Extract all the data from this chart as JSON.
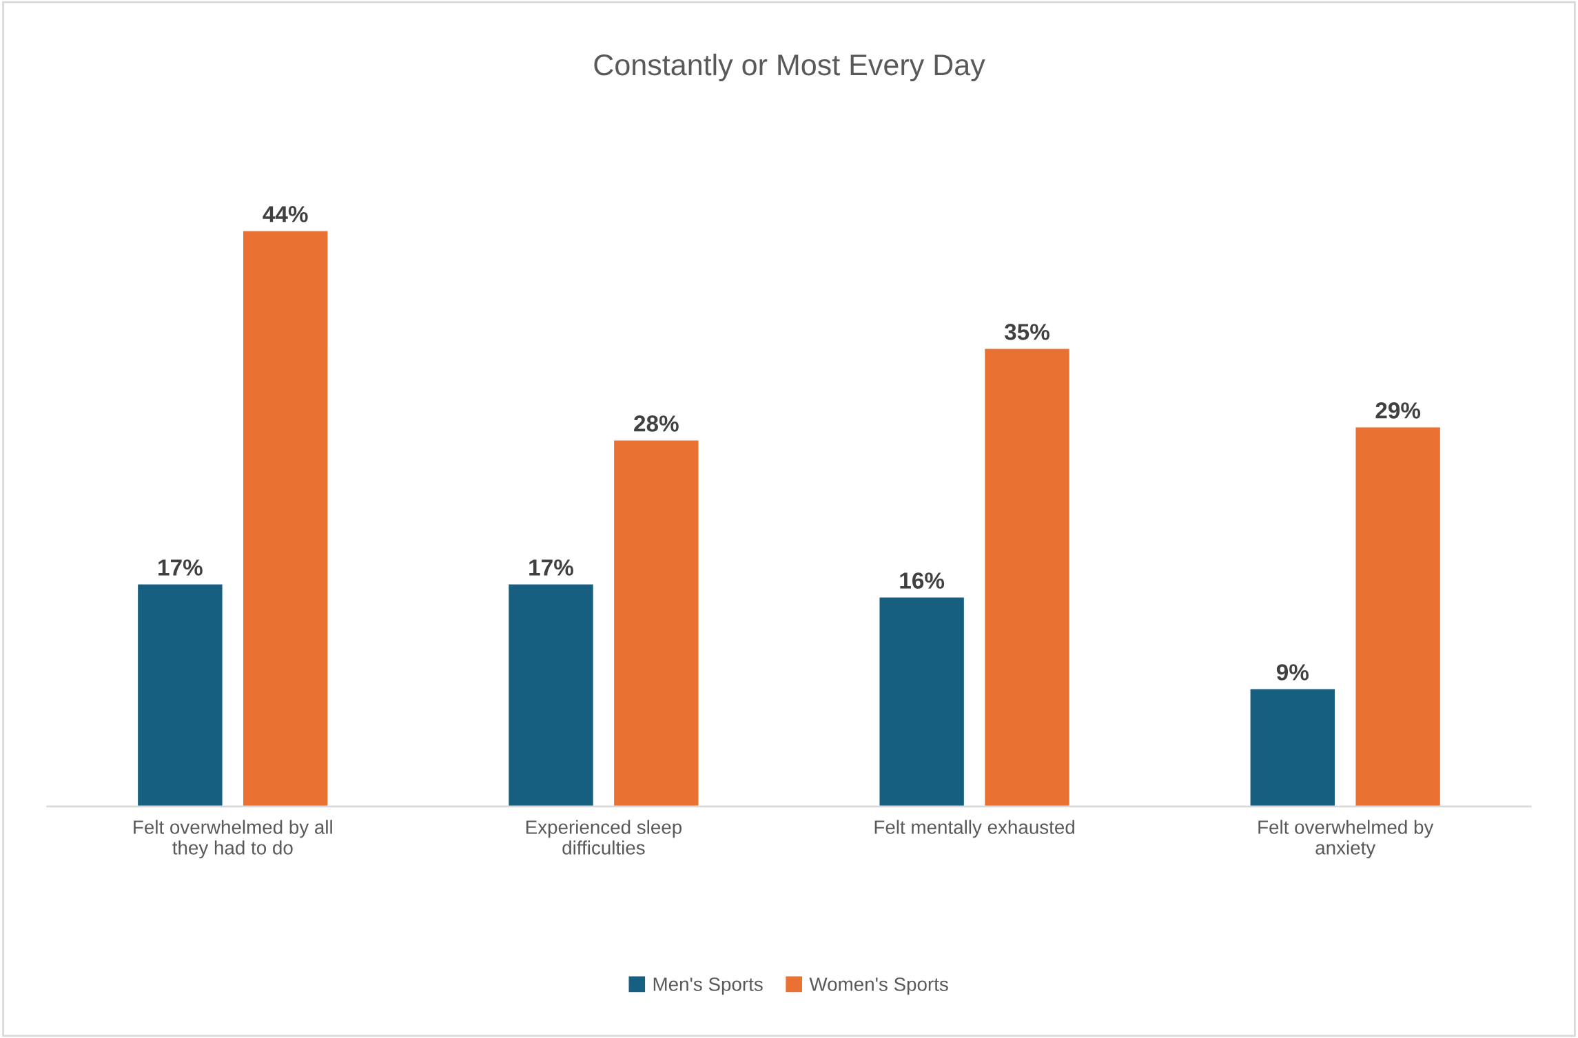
{
  "chart_data": {
    "type": "bar",
    "title": "Constantly or Most Every Day",
    "categories": [
      "Felt overwhelmed by all\nthey had to do",
      "Experienced sleep\ndifficulties",
      "Felt mentally exhausted",
      "Felt overwhelmed by\nanxiety"
    ],
    "series": [
      {
        "name": "Men's Sports",
        "color": "#175f80",
        "values": [
          17,
          17,
          16,
          9
        ],
        "value_labels": [
          "17%",
          "17%",
          "16%",
          "9%"
        ]
      },
      {
        "name": "Women's Sports",
        "color": "#e97132",
        "values": [
          44,
          28,
          35,
          29
        ],
        "value_labels": [
          "44%",
          "28%",
          "35%",
          "29%"
        ]
      }
    ],
    "legend": "bottom",
    "grid": false
  }
}
